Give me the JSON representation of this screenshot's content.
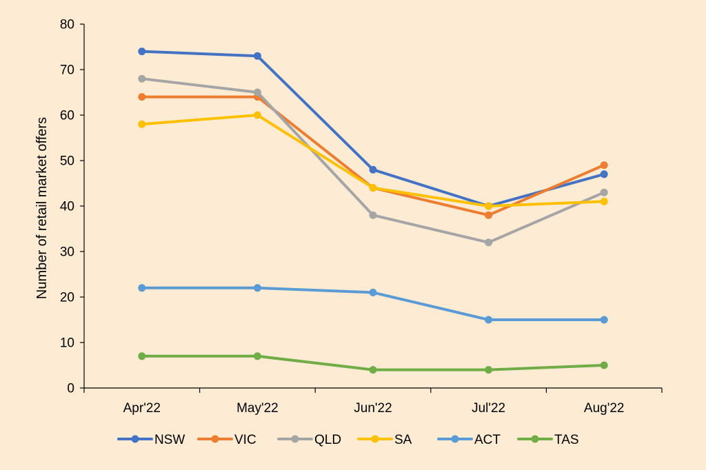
{
  "chart_data": {
    "type": "line",
    "title": "",
    "xlabel": "",
    "ylabel": "Number of retail market offers",
    "categories": [
      "Apr'22",
      "May'22",
      "Jun'22",
      "Jul'22",
      "Aug'22"
    ],
    "ylim": [
      0,
      80
    ],
    "yticks": [
      "0",
      "10",
      "20",
      "30",
      "40",
      "50",
      "60",
      "70",
      "80"
    ],
    "grid": false,
    "legend_position": "bottom",
    "series": [
      {
        "name": "NSW",
        "color": "#4472c4",
        "values": [
          74,
          73,
          48,
          40,
          47
        ]
      },
      {
        "name": "VIC",
        "color": "#ed7d31",
        "values": [
          64,
          64,
          44,
          38,
          49
        ]
      },
      {
        "name": "QLD",
        "color": "#a5a5a5",
        "values": [
          68,
          65,
          38,
          32,
          43
        ]
      },
      {
        "name": "SA",
        "color": "#ffc000",
        "values": [
          58,
          60,
          44,
          40,
          41
        ]
      },
      {
        "name": "ACT",
        "color": "#5b9bd5",
        "values": [
          22,
          22,
          21,
          15,
          15
        ]
      },
      {
        "name": "TAS",
        "color": "#70ad47",
        "values": [
          7,
          7,
          4,
          4,
          5
        ]
      }
    ]
  }
}
